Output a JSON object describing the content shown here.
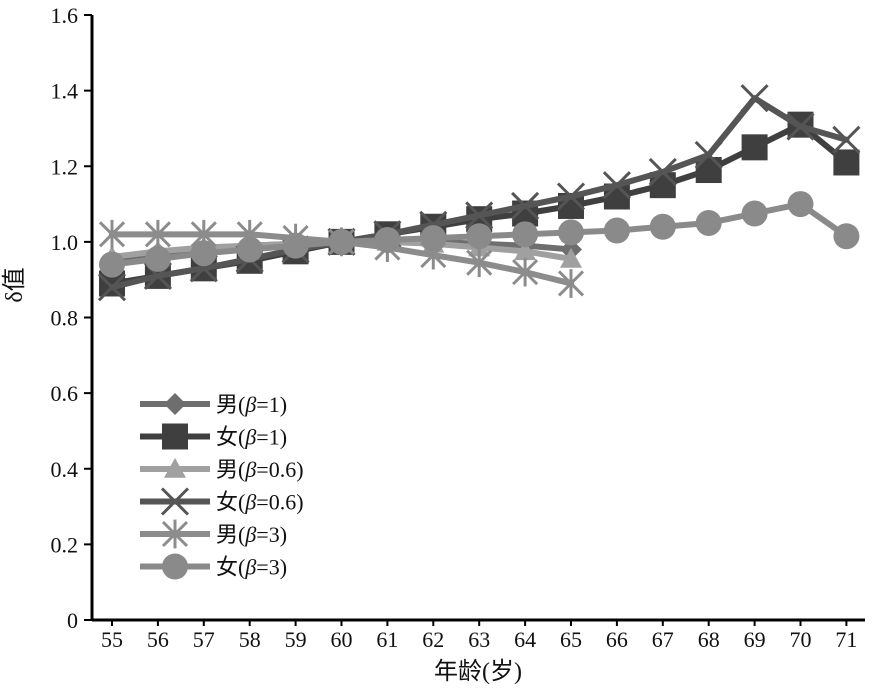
{
  "chart_data": {
    "type": "line",
    "xlabel": "年龄(岁)",
    "ylabel": "δ值",
    "x": [
      55,
      56,
      57,
      58,
      59,
      60,
      61,
      62,
      63,
      64,
      65,
      66,
      67,
      68,
      69,
      70,
      71
    ],
    "x_tick_labels": [
      "55",
      "56",
      "57",
      "58",
      "59",
      "60",
      "61",
      "62",
      "63",
      "64",
      "65",
      "66",
      "67",
      "68",
      "69",
      "70",
      "71"
    ],
    "ylim": [
      0,
      1.6
    ],
    "y_ticks": [
      0,
      0.2,
      0.4,
      0.6,
      0.8,
      1.0,
      1.2,
      1.4,
      1.6
    ],
    "y_tick_labels": [
      "0",
      "0.2",
      "0.4",
      "0.6",
      "0.8",
      "1.0",
      "1.2",
      "1.4",
      "1.6"
    ],
    "grid": false,
    "legend_position": "lower-left",
    "series": [
      {
        "name": "男(β=1)",
        "legend": {
          "prefix": "男(",
          "beta": "β",
          "suffix": "=1)"
        },
        "marker": "diamond",
        "color": "#6e6e6e",
        "x": [
          55,
          56,
          57,
          58,
          59,
          60,
          61,
          62,
          63,
          64,
          65
        ],
        "values": [
          0.95,
          0.97,
          0.98,
          0.99,
          0.995,
          1.0,
          1.0,
          1.0,
          0.995,
          0.99,
          0.98
        ]
      },
      {
        "name": "女(β=1)",
        "legend": {
          "prefix": "女(",
          "beta": "β",
          "suffix": "=1)"
        },
        "marker": "square",
        "color": "#3f3f3f",
        "x": [
          55,
          56,
          57,
          58,
          59,
          60,
          61,
          62,
          63,
          64,
          65,
          66,
          67,
          68,
          69,
          70,
          71
        ],
        "values": [
          0.89,
          0.91,
          0.93,
          0.95,
          0.975,
          1.0,
          1.02,
          1.04,
          1.06,
          1.075,
          1.095,
          1.12,
          1.15,
          1.19,
          1.25,
          1.31,
          1.21
        ]
      },
      {
        "name": "男(β=0.6)",
        "legend": {
          "prefix": "男(",
          "beta": "β",
          "suffix": "=0.6)"
        },
        "marker": "triangle",
        "color": "#a0a0a0",
        "x": [
          55,
          56,
          57,
          58,
          59,
          60,
          61,
          62,
          63,
          64,
          65
        ],
        "values": [
          0.96,
          0.975,
          0.985,
          0.99,
          0.995,
          1.0,
          1.0,
          0.995,
          0.985,
          0.975,
          0.955
        ]
      },
      {
        "name": "女(β=0.6)",
        "legend": {
          "prefix": "女(",
          "beta": "β",
          "suffix": "=0.6)"
        },
        "marker": "x",
        "color": "#555555",
        "x": [
          55,
          56,
          57,
          58,
          59,
          60,
          61,
          62,
          63,
          64,
          65,
          66,
          67,
          68,
          69,
          70,
          71
        ],
        "values": [
          0.88,
          0.91,
          0.93,
          0.955,
          0.98,
          1.0,
          1.02,
          1.045,
          1.07,
          1.095,
          1.12,
          1.15,
          1.185,
          1.23,
          1.38,
          1.305,
          1.27
        ]
      },
      {
        "name": "男(β=3)",
        "legend": {
          "prefix": "男(",
          "beta": "β",
          "suffix": "=3)"
        },
        "marker": "asterisk",
        "color": "#8c8c8c",
        "x": [
          55,
          56,
          57,
          58,
          59,
          60,
          61,
          62,
          63,
          64,
          65
        ],
        "values": [
          1.02,
          1.02,
          1.02,
          1.02,
          1.01,
          1.0,
          0.985,
          0.965,
          0.945,
          0.92,
          0.89
        ]
      },
      {
        "name": "女(β=3)",
        "legend": {
          "prefix": "女(",
          "beta": "β",
          "suffix": "=3)"
        },
        "marker": "circle",
        "color": "#8a8a8a",
        "x": [
          55,
          56,
          57,
          58,
          59,
          60,
          61,
          62,
          63,
          64,
          65,
          66,
          67,
          68,
          69,
          70,
          71
        ],
        "values": [
          0.94,
          0.955,
          0.97,
          0.98,
          0.99,
          1.0,
          1.005,
          1.01,
          1.015,
          1.02,
          1.025,
          1.03,
          1.04,
          1.05,
          1.075,
          1.1,
          1.015
        ]
      }
    ]
  }
}
